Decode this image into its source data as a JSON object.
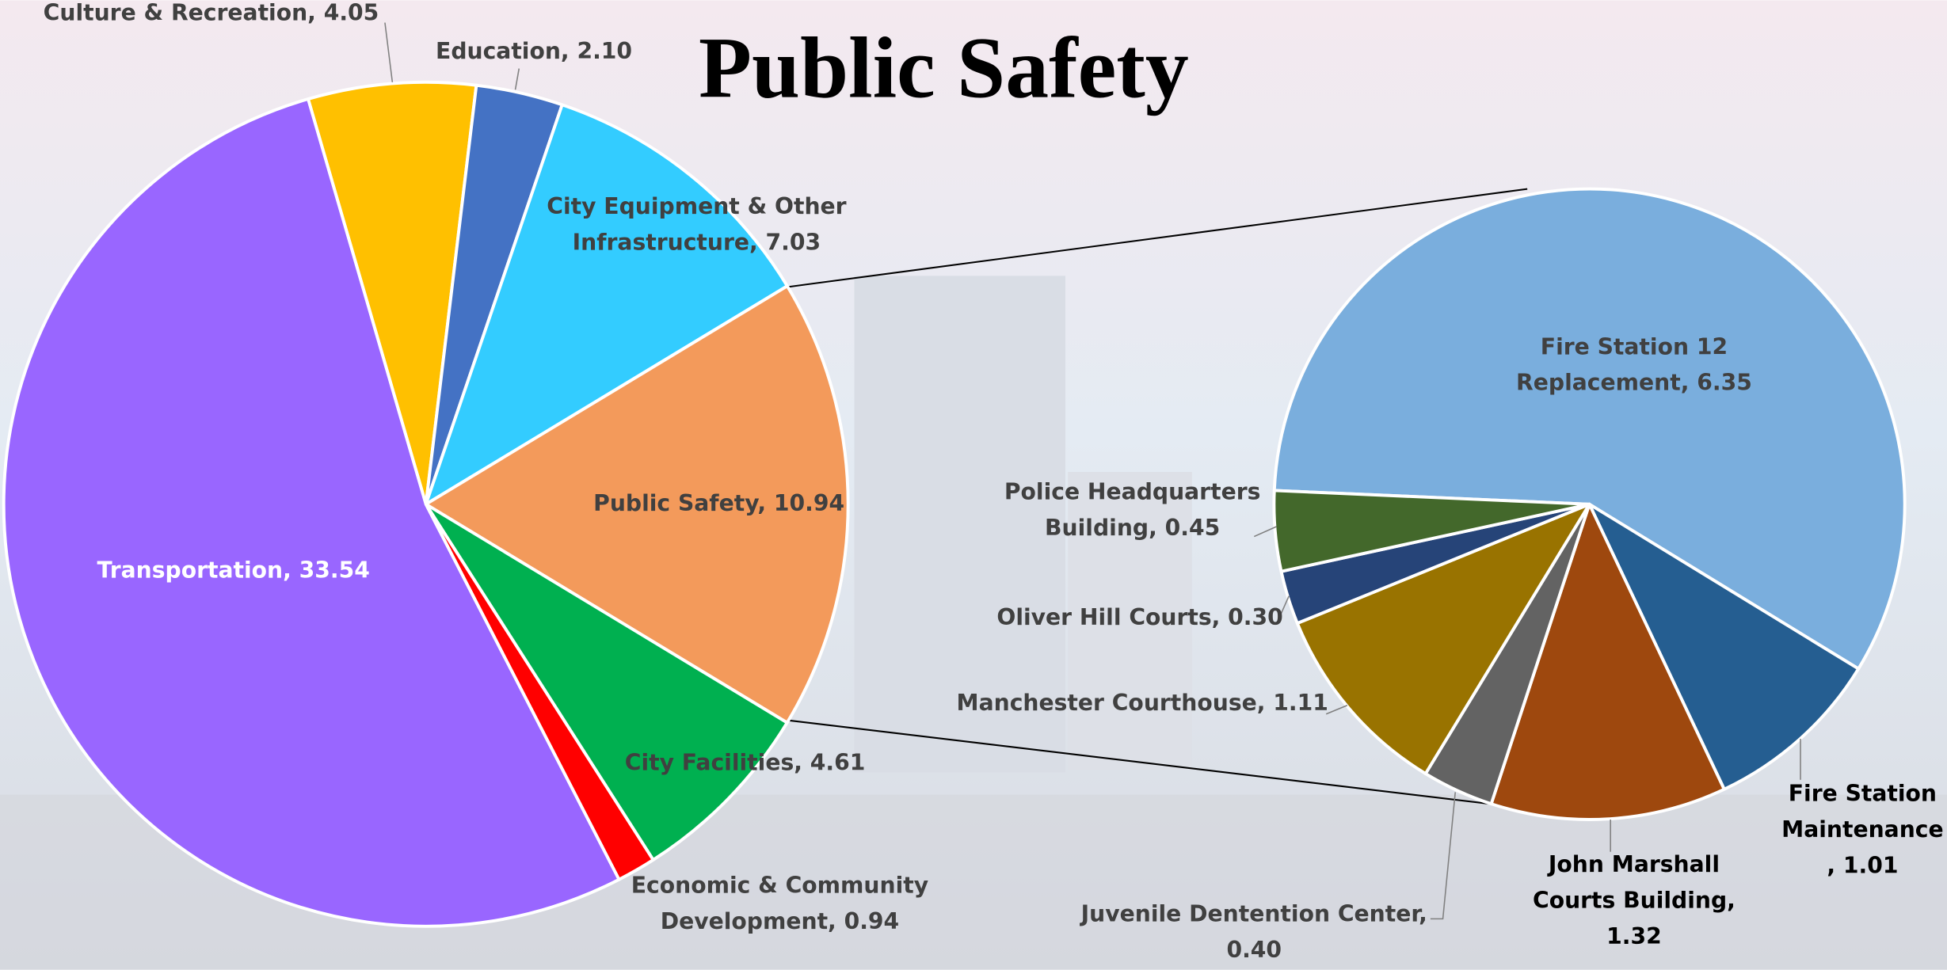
{
  "chart_data": [
    {
      "type": "pie",
      "title": "Public Safety",
      "values": [
        4.05,
        2.1,
        7.03,
        10.94,
        4.61,
        0.94,
        33.54
      ],
      "colors": [
        "#ffc000",
        "#4472c4",
        "#33ccff",
        "#f39a5b",
        "#00b050",
        "#ff0000",
        "#9966ff"
      ],
      "value_labels": [
        [
          "Culture & Recreation, 4.05"
        ],
        [
          "Education, 2.10"
        ],
        [
          "City Equipment & Other",
          "Infrastructure, 7.03"
        ],
        [
          "Public Safety, 10.94"
        ],
        [
          "City Facilities, 4.61"
        ],
        [
          "Economic & Community",
          "Development, 0.94"
        ],
        [
          "Transportation, 33.54"
        ]
      ]
    },
    {
      "type": "pie",
      "values": [
        6.35,
        1.01,
        1.32,
        0.4,
        1.11,
        0.3,
        0.45
      ],
      "colors": [
        "#7aaedd",
        "#255e91",
        "#9e480e",
        "#636363",
        "#997300",
        "#264478",
        "#43682b"
      ],
      "value_labels": [
        [
          "Fire Station 12",
          "Replacement, 6.35"
        ],
        [
          "Fire Station",
          "Maintenance",
          ", 1.01"
        ],
        [
          "John Marshall",
          "Courts Building,",
          "1.32"
        ],
        [
          "Juvenile Dentention Center,",
          "0.40"
        ],
        [
          "Manchester Courthouse, 1.11"
        ],
        [
          "Oliver Hill Courts, 0.30"
        ],
        [
          "Police Headquarters",
          "Building, 0.45"
        ]
      ]
    }
  ]
}
